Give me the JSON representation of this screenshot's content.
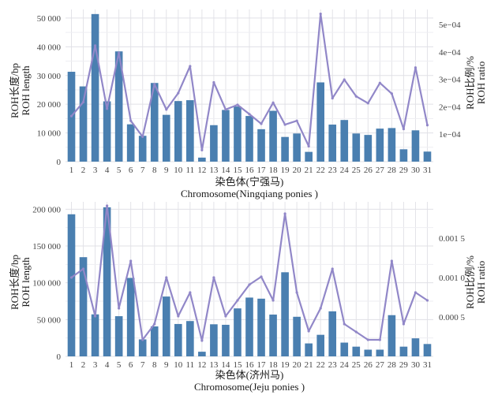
{
  "chart_data": [
    {
      "type": "bar",
      "panel": "top",
      "title": "",
      "xlabel": [
        "染色体(宁强马)",
        "Chromosome(Ningqiang ponies )"
      ],
      "ylabel": [
        "ROH长度/bp",
        "ROH length"
      ],
      "y2label": [
        "ROH比例/%",
        "ROH ratio"
      ],
      "categories": [
        "1",
        "2",
        "3",
        "4",
        "5",
        "6",
        "7",
        "8",
        "9",
        "10",
        "11",
        "12",
        "13",
        "14",
        "15",
        "16",
        "17",
        "18",
        "19",
        "20",
        "21",
        "22",
        "23",
        "24",
        "25",
        "26",
        "27",
        "28",
        "29",
        "30",
        "31"
      ],
      "ylim": [
        0,
        53000
      ],
      "yticks": [
        0,
        10000,
        20000,
        30000,
        40000,
        50000
      ],
      "ytick_labels": [
        "0",
        "10 000",
        "20 000",
        "30 000",
        "40 000",
        "50 000"
      ],
      "y2lim": [
        0,
        0.000555
      ],
      "y2ticks": [
        0.0001,
        0.0002,
        0.0003,
        0.0004,
        0.0005
      ],
      "y2tick_labels": [
        "1e−04",
        "2e−04",
        "3e−04",
        "4e−04",
        "5e−04"
      ],
      "grid": true,
      "series": [
        {
          "name": "ROH length",
          "type": "bar",
          "axis": "left",
          "color": "#4a7fb0",
          "values": [
            31300,
            26200,
            51400,
            21000,
            38400,
            13000,
            9000,
            27400,
            16300,
            21100,
            21400,
            1400,
            12700,
            18000,
            19200,
            15900,
            11300,
            17700,
            8600,
            9800,
            3400,
            27600,
            12900,
            14500,
            9800,
            9300,
            11500,
            11700,
            4300,
            10900,
            3500
          ]
        },
        {
          "name": "ROH ratio",
          "type": "line",
          "axis": "right",
          "color": "#9187c8",
          "values": [
            0.000166,
            0.000217,
            0.000423,
            0.000193,
            0.000397,
            0.000149,
            9.1e-05,
            0.000282,
            0.00019,
            0.00025,
            0.000348,
            4.2e-05,
            0.000289,
            0.00019,
            0.000207,
            0.000173,
            0.000138,
            0.000215,
            0.000135,
            0.000149,
            5.6e-05,
            0.000539,
            0.000231,
            0.000299,
            0.000238,
            0.000213,
            0.000287,
            0.000248,
            0.000119,
            0.000343,
            0.000133
          ]
        }
      ]
    },
    {
      "type": "bar",
      "panel": "bottom",
      "title": "",
      "xlabel": [
        "染色体(济州马)",
        "Chromosome(Jeju ponies )"
      ],
      "ylabel": [
        "ROH长度/bp",
        "ROH length"
      ],
      "y2label": [
        "ROH比例/%",
        "ROH ratio"
      ],
      "categories": [
        "1",
        "2",
        "3",
        "4",
        "5",
        "6",
        "7",
        "8",
        "9",
        "10",
        "11",
        "12",
        "13",
        "14",
        "15",
        "16",
        "17",
        "18",
        "19",
        "20",
        "21",
        "22",
        "23",
        "24",
        "25",
        "26",
        "27",
        "28",
        "29",
        "30",
        "31"
      ],
      "ylim": [
        0,
        210000
      ],
      "yticks": [
        0,
        50000,
        100000,
        150000,
        200000
      ],
      "ytick_labels": [
        "0",
        "50 000",
        "100 000",
        "150 000",
        "200 000"
      ],
      "y2lim": [
        0,
        0.00196
      ],
      "y2ticks": [
        0.0005,
        0.001,
        0.0015
      ],
      "y2tick_labels": [
        "0.000 5",
        "0.001 0",
        "0.001 5"
      ],
      "grid": true,
      "series": [
        {
          "name": "ROH length",
          "type": "bar",
          "axis": "left",
          "color": "#4a7fb0",
          "values": [
            193100,
            134800,
            57100,
            202600,
            54600,
            106600,
            23100,
            40700,
            81300,
            44000,
            48000,
            6300,
            43600,
            42900,
            65200,
            79900,
            78400,
            56800,
            114300,
            53800,
            17600,
            29300,
            61200,
            18700,
            13200,
            9100,
            9100,
            56000,
            13200,
            24500,
            16800
          ]
        },
        {
          "name": "ROH ratio",
          "type": "line",
          "axis": "right",
          "color": "#9187c8",
          "values": [
            0.001,
            0.00111,
            0.00051,
            0.00191,
            0.00061,
            0.00121,
            0.00021,
            0.00041,
            0.001,
            0.00051,
            0.00081,
            0.0002,
            0.001,
            0.00051,
            0.00071,
            0.00091,
            0.00101,
            0.00071,
            0.00181,
            0.00081,
            0.00032,
            0.00061,
            0.00111,
            0.00041,
            0.00031,
            0.00021,
            0.00021,
            0.00121,
            0.00041,
            0.00081,
            0.00071
          ]
        }
      ]
    }
  ]
}
